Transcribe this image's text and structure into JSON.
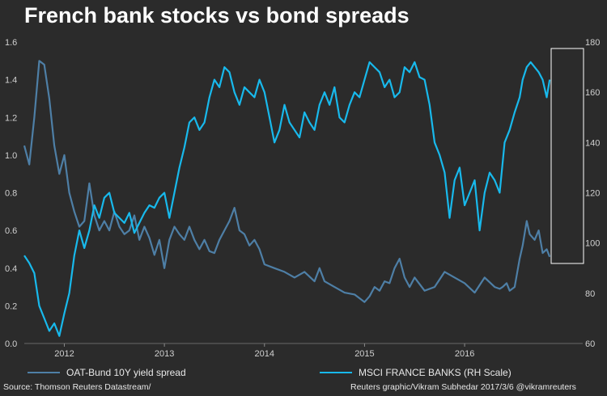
{
  "title": "French bank stocks vs bond spreads",
  "legend": {
    "left": {
      "label": "OAT-Bund 10Y yield spread",
      "color": "#4e7fa6"
    },
    "right": {
      "label": "MSCI FRANCE BANKS (RH Scale)",
      "color": "#18b9ec"
    }
  },
  "footer": {
    "source": "Source: Thomson Reuters Datastream/",
    "credit": "Reuters graphic/Vikram Subhedar 2017/3/6  @vikramreuters"
  },
  "chart_data": {
    "type": "line",
    "x_ticks": [
      "2012",
      "2013",
      "2014",
      "2015",
      "2016"
    ],
    "x_range": [
      2011.6,
      2017.18
    ],
    "y_left": {
      "ticks": [
        "0.0",
        "0.2",
        "0.4",
        "0.6",
        "0.8",
        "1.0",
        "1.2",
        "1.4",
        "1.6"
      ],
      "ylim": [
        0,
        1.6
      ]
    },
    "y_right": {
      "ticks": [
        "60",
        "80",
        "100",
        "120",
        "140",
        "160",
        "180"
      ],
      "ylim": [
        60,
        180
      ]
    },
    "annotation": "box highlighting recent period",
    "series": [
      {
        "name": "OAT-Bund 10Y yield spread",
        "axis": "left",
        "color": "#4e7fa6",
        "x": [
          2011.6,
          2011.65,
          2011.7,
          2011.75,
          2011.8,
          2011.85,
          2011.9,
          2011.95,
          2012.0,
          2012.05,
          2012.1,
          2012.15,
          2012.2,
          2012.25,
          2012.3,
          2012.35,
          2012.4,
          2012.45,
          2012.5,
          2012.55,
          2012.6,
          2012.65,
          2012.7,
          2012.75,
          2012.8,
          2012.85,
          2012.9,
          2012.95,
          2013.0,
          2013.05,
          2013.1,
          2013.15,
          2013.2,
          2013.25,
          2013.3,
          2013.35,
          2013.4,
          2013.45,
          2013.5,
          2013.55,
          2013.6,
          2013.65,
          2013.7,
          2013.75,
          2013.8,
          2013.85,
          2013.9,
          2013.95,
          2014.0,
          2014.1,
          2014.2,
          2014.3,
          2014.4,
          2014.5,
          2014.55,
          2014.6,
          2014.7,
          2014.8,
          2014.9,
          2015.0,
          2015.05,
          2015.1,
          2015.15,
          2015.2,
          2015.25,
          2015.3,
          2015.35,
          2015.4,
          2015.45,
          2015.5,
          2015.6,
          2015.7,
          2015.8,
          2015.9,
          2016.0,
          2016.1,
          2016.2,
          2016.3,
          2016.35,
          2016.38,
          2016.42,
          2016.45,
          2016.5,
          2016.55,
          2016.58,
          2016.62,
          2016.65,
          2016.7,
          2016.74,
          2016.78,
          2016.82,
          2016.85
        ],
        "y": [
          1.05,
          0.95,
          1.2,
          1.5,
          1.48,
          1.3,
          1.05,
          0.9,
          1.0,
          0.8,
          0.7,
          0.62,
          0.65,
          0.85,
          0.68,
          0.6,
          0.65,
          0.6,
          0.7,
          0.62,
          0.58,
          0.6,
          0.68,
          0.55,
          0.62,
          0.56,
          0.47,
          0.55,
          0.4,
          0.55,
          0.62,
          0.58,
          0.55,
          0.62,
          0.55,
          0.5,
          0.55,
          0.49,
          0.48,
          0.55,
          0.6,
          0.65,
          0.72,
          0.6,
          0.58,
          0.52,
          0.55,
          0.5,
          0.42,
          0.4,
          0.38,
          0.35,
          0.38,
          0.33,
          0.4,
          0.33,
          0.3,
          0.27,
          0.26,
          0.22,
          0.25,
          0.3,
          0.28,
          0.33,
          0.32,
          0.4,
          0.45,
          0.35,
          0.3,
          0.35,
          0.28,
          0.3,
          0.38,
          0.35,
          0.32,
          0.27,
          0.35,
          0.3,
          0.29,
          0.3,
          0.32,
          0.28,
          0.3,
          0.45,
          0.52,
          0.65,
          0.58,
          0.55,
          0.6,
          0.48,
          0.5,
          0.46
        ]
      },
      {
        "name": "MSCI FRANCE BANKS (RH Scale)",
        "axis": "right",
        "color": "#18b9ec",
        "x": [
          2011.6,
          2011.65,
          2011.7,
          2011.75,
          2011.8,
          2011.85,
          2011.9,
          2011.95,
          2012.0,
          2012.05,
          2012.1,
          2012.15,
          2012.2,
          2012.25,
          2012.3,
          2012.35,
          2012.4,
          2012.45,
          2012.5,
          2012.55,
          2012.6,
          2012.65,
          2012.7,
          2012.75,
          2012.8,
          2012.85,
          2012.9,
          2012.95,
          2013.0,
          2013.05,
          2013.1,
          2013.15,
          2013.2,
          2013.25,
          2013.3,
          2013.35,
          2013.4,
          2013.45,
          2013.5,
          2013.55,
          2013.6,
          2013.65,
          2013.7,
          2013.75,
          2013.8,
          2013.85,
          2013.9,
          2013.95,
          2014.0,
          2014.05,
          2014.1,
          2014.15,
          2014.2,
          2014.25,
          2014.3,
          2014.35,
          2014.4,
          2014.45,
          2014.5,
          2014.55,
          2014.6,
          2014.65,
          2014.7,
          2014.75,
          2014.8,
          2014.85,
          2014.9,
          2014.95,
          2015.0,
          2015.05,
          2015.1,
          2015.15,
          2015.2,
          2015.25,
          2015.3,
          2015.35,
          2015.4,
          2015.45,
          2015.5,
          2015.55,
          2015.6,
          2015.65,
          2015.7,
          2015.75,
          2015.8,
          2015.85,
          2015.9,
          2015.95,
          2016.0,
          2016.05,
          2016.1,
          2016.15,
          2016.2,
          2016.25,
          2016.3,
          2016.35,
          2016.4,
          2016.45,
          2016.5,
          2016.55,
          2016.58,
          2016.62,
          2016.66,
          2016.7,
          2016.74,
          2016.78,
          2016.82,
          2016.85
        ],
        "y": [
          95,
          92,
          88,
          75,
          70,
          65,
          68,
          63,
          72,
          80,
          95,
          105,
          98,
          105,
          115,
          110,
          118,
          120,
          112,
          110,
          108,
          112,
          104,
          108,
          112,
          115,
          114,
          118,
          120,
          110,
          120,
          130,
          138,
          148,
          150,
          145,
          148,
          158,
          165,
          162,
          170,
          168,
          160,
          155,
          162,
          160,
          158,
          165,
          160,
          150,
          140,
          145,
          155,
          148,
          145,
          142,
          152,
          148,
          145,
          155,
          160,
          155,
          162,
          150,
          148,
          155,
          160,
          158,
          165,
          172,
          170,
          168,
          162,
          165,
          158,
          160,
          170,
          168,
          172,
          166,
          165,
          155,
          140,
          135,
          128,
          110,
          125,
          130,
          115,
          120,
          125,
          105,
          120,
          128,
          125,
          120,
          140,
          145,
          152,
          158,
          165,
          170,
          172,
          170,
          168,
          165,
          158,
          165
        ]
      }
    ]
  }
}
